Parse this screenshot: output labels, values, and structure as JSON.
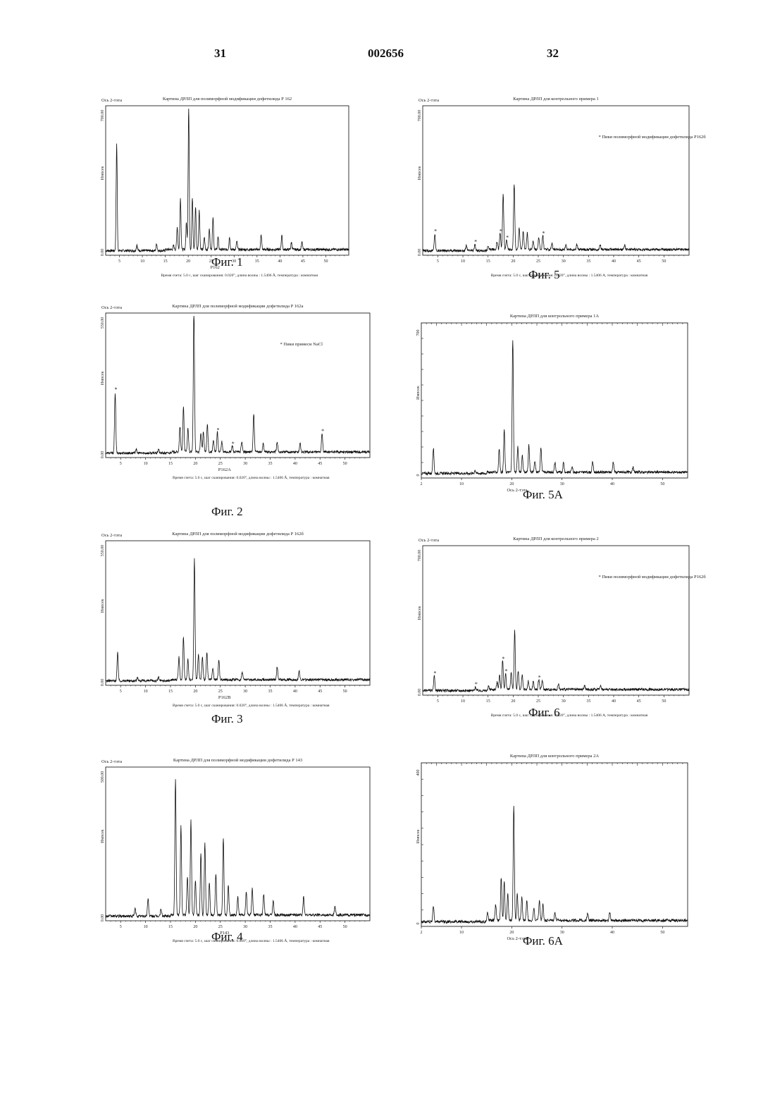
{
  "header": {
    "left": "31",
    "center": "002656",
    "right": "32"
  },
  "figures": [
    {
      "id": "f1",
      "caption": "Фиг. 1",
      "title": "Картина ДРЛП для полиморфной модификации дофетилида Р 162",
      "corner_label": "Ось 2-тэта",
      "ylabel": "Импсек",
      "ytop": "700.00",
      "ybottom": "0.00",
      "x_ticks": [
        "5",
        "10",
        "15",
        "20",
        "25",
        "30",
        "35",
        "40",
        "45",
        "50"
      ],
      "sample_label": "P162",
      "footnote": "Время счета: 5.0 с, шаг сканирования: 0.020°, длина волны : 1.5406 Å, температура : комнатная",
      "legend": "",
      "annotations": []
    },
    {
      "id": "f2",
      "caption": "Фиг. 2",
      "title": "Картина ДРЛП для полиморфной модификации дофетилида Р 162а",
      "corner_label": "Ось 2-тэта",
      "ylabel": "Импсек",
      "ytop": "550.00",
      "ybottom": "0.00",
      "x_ticks": [
        "5",
        "10",
        "15",
        "20",
        "25",
        "30",
        "35",
        "40",
        "45",
        "50"
      ],
      "sample_label": "P162A",
      "footnote": "Время счета: 5.0 с, шаг сканирования: 0.020°, длина волны : 1.5406 Å, температура : комнатная",
      "legend": "* Пики примеси NaCl",
      "annotations": [
        "*",
        "*",
        "*",
        "*"
      ]
    },
    {
      "id": "f3",
      "caption": "Фиг. 3",
      "title": "Картина ДРЛП для полиморфной модификации дофетилида Р 162б",
      "corner_label": "Ось 2-тэта",
      "ylabel": "Импсек",
      "ytop": "550.00",
      "ybottom": "0.00",
      "x_ticks": [
        "5",
        "10",
        "15",
        "20",
        "25",
        "30",
        "35",
        "40",
        "45",
        "50"
      ],
      "sample_label": "P162B",
      "footnote": "Время счета: 5.0 с, шаг сканирования: 0.020°, длина волны : 1.5406 Å, температура : комнатная",
      "legend": "",
      "annotations": []
    },
    {
      "id": "f4",
      "caption": "Фиг. 4",
      "title": "Картина ДРЛП для полиморфной модификации дофетилида Р 143",
      "corner_label": "Ось 2-тэта",
      "ylabel": "Импсек",
      "ytop": "500.00",
      "ybottom": "0.00",
      "x_ticks": [
        "5",
        "10",
        "15",
        "20",
        "25",
        "30",
        "35",
        "40",
        "45",
        "50"
      ],
      "sample_label": "P143",
      "footnote": "Время счета: 5.0 с, шаг сканирования: 0.020°, длина волны : 1.5406 Å, температура : комнатная",
      "legend": "",
      "annotations": []
    },
    {
      "id": "f5",
      "caption": "Фиг. 5",
      "title": "Картина ДРЛП для контрольного примера 1",
      "corner_label": "Ось 2-тэта",
      "ylabel": "Импсек",
      "ytop": "700.00",
      "ybottom": "0.00",
      "x_ticks": [
        "5",
        "10",
        "15",
        "20",
        "25",
        "30",
        "35",
        "40",
        "45",
        "50"
      ],
      "sample_label": "",
      "footnote": "Время счета: 5.0 с, шаг сканирования: 0.020°, длина волны : 1.5406 А, температура : комнатная",
      "legend": "* Пики полиморфной модификации дофетилида Р162б",
      "annotations": [
        "*",
        "*",
        "*",
        "*",
        "*"
      ]
    },
    {
      "id": "f5a",
      "caption": "Фиг. 5А",
      "title": "Картина ДРЛП для контрольного примера 1А",
      "corner_label": "",
      "ylabel": "Импсек",
      "ytop": "700",
      "ybottom": "0",
      "x_ticks": [
        "2",
        "10",
        "20",
        "30",
        "40",
        "50"
      ],
      "sample_label": "Ось 2-тэта",
      "footnote": "",
      "legend": "",
      "annotations": []
    },
    {
      "id": "f6",
      "caption": "Фиг. 6",
      "title": "Картина ДРЛП для контрольного примера 2",
      "corner_label": "Ось 2-тэта",
      "ylabel": "Импсек",
      "ytop": "700.00",
      "ybottom": "0.00",
      "x_ticks": [
        "5",
        "10",
        "15",
        "20",
        "25",
        "30",
        "35",
        "40",
        "45",
        "50"
      ],
      "sample_label": "",
      "footnote": "Время счета: 5.0 с, шаг сканирования: 0.020°, длина волны : 1.5406 А, температура : комнатная",
      "legend": "* Пики полиморфной модификации дофетилида Р162б",
      "annotations": [
        "*",
        "*",
        "*",
        "*",
        "*"
      ]
    },
    {
      "id": "f6a",
      "caption": "Фиг. 6А",
      "title": "Картина ДРЛП для контрольного примера 2А",
      "corner_label": "",
      "ylabel": "Импсек",
      "ytop": "400",
      "ybottom": "0",
      "x_ticks": [
        "2",
        "10",
        "20",
        "30",
        "40",
        "50"
      ],
      "sample_label": "Ось 2-тэта",
      "footnote": "",
      "legend": "",
      "annotations": []
    }
  ],
  "chart_data": [
    {
      "figure": "Фиг. 1",
      "type": "line",
      "xlim": [
        2,
        55
      ],
      "ylim": [
        0,
        700
      ],
      "peaks": [
        [
          4.4,
          520
        ],
        [
          8.8,
          30
        ],
        [
          13.1,
          35
        ],
        [
          16.8,
          20
        ],
        [
          17.6,
          110
        ],
        [
          18.3,
          250
        ],
        [
          19.6,
          130
        ],
        [
          20.1,
          700
        ],
        [
          20.9,
          250
        ],
        [
          21.6,
          210
        ],
        [
          22.4,
          190
        ],
        [
          23.5,
          60
        ],
        [
          24.6,
          100
        ],
        [
          25.4,
          160
        ],
        [
          26.5,
          60
        ],
        [
          29.0,
          60
        ],
        [
          30.6,
          40
        ],
        [
          35.9,
          70
        ],
        [
          40.4,
          70
        ],
        [
          42.5,
          35
        ],
        [
          44.8,
          35
        ]
      ]
    },
    {
      "figure": "Фиг. 2",
      "type": "line",
      "xlim": [
        2,
        55
      ],
      "ylim": [
        0,
        550
      ],
      "peaks": [
        [
          3.9,
          240
        ],
        [
          8.1,
          15
        ],
        [
          12.6,
          15
        ],
        [
          16.9,
          100
        ],
        [
          17.6,
          180
        ],
        [
          18.5,
          90
        ],
        [
          19.7,
          570
        ],
        [
          21.1,
          75
        ],
        [
          21.6,
          80
        ],
        [
          22.4,
          110
        ],
        [
          23.6,
          45
        ],
        [
          24.4,
          80
        ],
        [
          25.3,
          40
        ],
        [
          27.4,
          25
        ],
        [
          29.3,
          40
        ],
        [
          31.7,
          150
        ],
        [
          33.6,
          35
        ],
        [
          36.4,
          40
        ],
        [
          41.0,
          35
        ],
        [
          45.4,
          75
        ]
      ]
    },
    {
      "figure": "Фиг. 3",
      "type": "line",
      "xlim": [
        2,
        55
      ],
      "ylim": [
        0,
        550
      ],
      "peaks": [
        [
          4.4,
          110
        ],
        [
          8.4,
          15
        ],
        [
          12.6,
          15
        ],
        [
          16.7,
          90
        ],
        [
          17.6,
          170
        ],
        [
          18.5,
          80
        ],
        [
          19.8,
          480
        ],
        [
          20.6,
          100
        ],
        [
          21.4,
          90
        ],
        [
          22.3,
          110
        ],
        [
          23.5,
          45
        ],
        [
          24.7,
          80
        ],
        [
          29.4,
          30
        ],
        [
          36.4,
          50
        ],
        [
          40.8,
          35
        ]
      ]
    },
    {
      "figure": "Фиг. 4",
      "type": "line",
      "xlim": [
        2,
        55
      ],
      "ylim": [
        0,
        500
      ],
      "peaks": [
        [
          7.9,
          25
        ],
        [
          10.5,
          60
        ],
        [
          13.1,
          25
        ],
        [
          16.0,
          460
        ],
        [
          17.1,
          300
        ],
        [
          18.4,
          130
        ],
        [
          19.1,
          320
        ],
        [
          20.0,
          120
        ],
        [
          21.1,
          210
        ],
        [
          21.9,
          240
        ],
        [
          22.8,
          110
        ],
        [
          24.1,
          140
        ],
        [
          25.6,
          260
        ],
        [
          26.6,
          100
        ],
        [
          28.5,
          60
        ],
        [
          30.2,
          80
        ],
        [
          31.4,
          90
        ],
        [
          33.7,
          70
        ],
        [
          35.6,
          50
        ],
        [
          41.7,
          60
        ],
        [
          48.0,
          30
        ]
      ]
    },
    {
      "figure": "Фиг. 5",
      "type": "line",
      "xlim": [
        2,
        55
      ],
      "ylim": [
        0,
        700
      ],
      "peaks": [
        [
          4.4,
          80
        ],
        [
          10.7,
          25
        ],
        [
          12.4,
          30
        ],
        [
          15.0,
          20
        ],
        [
          16.8,
          40
        ],
        [
          17.4,
          80
        ],
        [
          18.0,
          270
        ],
        [
          18.7,
          50
        ],
        [
          20.2,
          320
        ],
        [
          21.2,
          110
        ],
        [
          22.0,
          90
        ],
        [
          22.8,
          80
        ],
        [
          24.0,
          40
        ],
        [
          25.1,
          60
        ],
        [
          25.9,
          70
        ],
        [
          27.7,
          30
        ],
        [
          30.5,
          25
        ],
        [
          32.7,
          25
        ],
        [
          37.3,
          25
        ],
        [
          42.2,
          20
        ]
      ]
    },
    {
      "figure": "Фиг. 5А",
      "type": "line",
      "xlim": [
        2,
        55
      ],
      "ylim": [
        0,
        700
      ],
      "peaks": [
        [
          4.4,
          120
        ],
        [
          12.7,
          15
        ],
        [
          17.5,
          110
        ],
        [
          18.5,
          200
        ],
        [
          20.2,
          620
        ],
        [
          21.2,
          120
        ],
        [
          22.1,
          80
        ],
        [
          23.4,
          125
        ],
        [
          24.6,
          50
        ],
        [
          25.8,
          120
        ],
        [
          28.6,
          45
        ],
        [
          30.3,
          45
        ],
        [
          32.0,
          30
        ],
        [
          36.1,
          50
        ],
        [
          40.2,
          50
        ],
        [
          44.1,
          25
        ]
      ]
    },
    {
      "figure": "Фиг. 6",
      "type": "line",
      "xlim": [
        2,
        55
      ],
      "ylim": [
        0,
        700
      ],
      "peaks": [
        [
          4.3,
          70
        ],
        [
          12.5,
          18
        ],
        [
          15.1,
          15
        ],
        [
          16.8,
          35
        ],
        [
          17.3,
          70
        ],
        [
          17.9,
          140
        ],
        [
          18.5,
          80
        ],
        [
          19.6,
          80
        ],
        [
          20.3,
          290
        ],
        [
          21.0,
          90
        ],
        [
          21.8,
          70
        ],
        [
          23.0,
          40
        ],
        [
          24.0,
          40
        ],
        [
          25.1,
          50
        ],
        [
          25.8,
          45
        ],
        [
          29.0,
          25
        ],
        [
          34.2,
          20
        ],
        [
          37.4,
          22
        ]
      ]
    },
    {
      "figure": "Фиг. 6А",
      "type": "line",
      "xlim": [
        2,
        55
      ],
      "ylim": [
        0,
        400
      ],
      "peaks": [
        [
          4.4,
          40
        ],
        [
          15.2,
          20
        ],
        [
          16.8,
          40
        ],
        [
          17.9,
          110
        ],
        [
          18.5,
          100
        ],
        [
          19.2,
          70
        ],
        [
          20.4,
          290
        ],
        [
          21.1,
          70
        ],
        [
          22.0,
          60
        ],
        [
          23.0,
          50
        ],
        [
          24.4,
          30
        ],
        [
          25.5,
          50
        ],
        [
          26.2,
          40
        ],
        [
          28.6,
          20
        ],
        [
          35.1,
          20
        ],
        [
          39.5,
          20
        ]
      ]
    }
  ]
}
